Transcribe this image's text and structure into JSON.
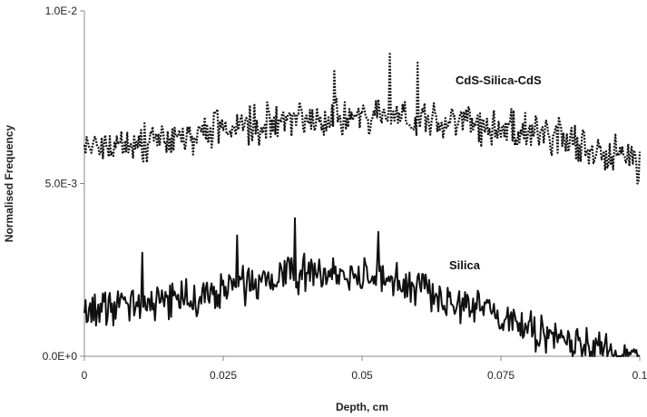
{
  "chart_data": {
    "type": "line",
    "title": "",
    "xlabel": "Depth, cm",
    "ylabel": "Normalised Frequency",
    "xlim": [
      0,
      0.1
    ],
    "ylim": [
      0,
      0.01
    ],
    "x_ticks": [
      0,
      0.025,
      0.05,
      0.075,
      0.1
    ],
    "x_tick_labels": [
      "0",
      "0.025",
      "0.05",
      "0.075",
      "0.1"
    ],
    "y_ticks": [
      0,
      0.005,
      0.01
    ],
    "y_tick_labels": [
      "0.0E+0",
      "5.0E-3",
      "1.0E-2"
    ],
    "grid": false,
    "legend": "none (series labelled inline)",
    "series": [
      {
        "name": "CdS-Silica-CdS",
        "style": "dotted",
        "color": "#111111",
        "x": [
          0,
          0.005,
          0.01,
          0.015,
          0.02,
          0.025,
          0.03,
          0.035,
          0.04,
          0.045,
          0.05,
          0.055,
          0.06,
          0.065,
          0.07,
          0.075,
          0.08,
          0.085,
          0.09,
          0.095,
          0.1
        ],
        "y": [
          0.0061,
          0.0061,
          0.0061,
          0.0062,
          0.0064,
          0.0066,
          0.0067,
          0.0068,
          0.0069,
          0.0069,
          0.007,
          0.007,
          0.0069,
          0.0068,
          0.0067,
          0.0066,
          0.0065,
          0.0063,
          0.0061,
          0.0059,
          0.0057
        ],
        "peaks": [
          {
            "x": 0.045,
            "y": 0.0083
          },
          {
            "x": 0.055,
            "y": 0.0088
          },
          {
            "x": 0.06,
            "y": 0.0085
          },
          {
            "x": 0.0995,
            "y": 0.005
          }
        ]
      },
      {
        "name": "Silica",
        "style": "solid",
        "color": "#111111",
        "x": [
          0,
          0.005,
          0.01,
          0.015,
          0.02,
          0.025,
          0.03,
          0.035,
          0.04,
          0.045,
          0.05,
          0.055,
          0.06,
          0.065,
          0.07,
          0.075,
          0.08,
          0.085,
          0.09,
          0.095,
          0.1
        ],
        "y": [
          0.0013,
          0.0014,
          0.0015,
          0.0016,
          0.0017,
          0.0019,
          0.0021,
          0.0023,
          0.0024,
          0.0024,
          0.0023,
          0.0022,
          0.002,
          0.0017,
          0.0014,
          0.0011,
          0.0008,
          0.0005,
          0.0003,
          0.0001,
          0.0
        ],
        "peaks": [
          {
            "x": 0.0105,
            "y": 0.003
          },
          {
            "x": 0.0275,
            "y": 0.0035
          },
          {
            "x": 0.038,
            "y": 0.004
          },
          {
            "x": 0.053,
            "y": 0.0036
          }
        ]
      }
    ],
    "annotations": [
      "CdS-Silica-CdS",
      "Silica"
    ]
  }
}
